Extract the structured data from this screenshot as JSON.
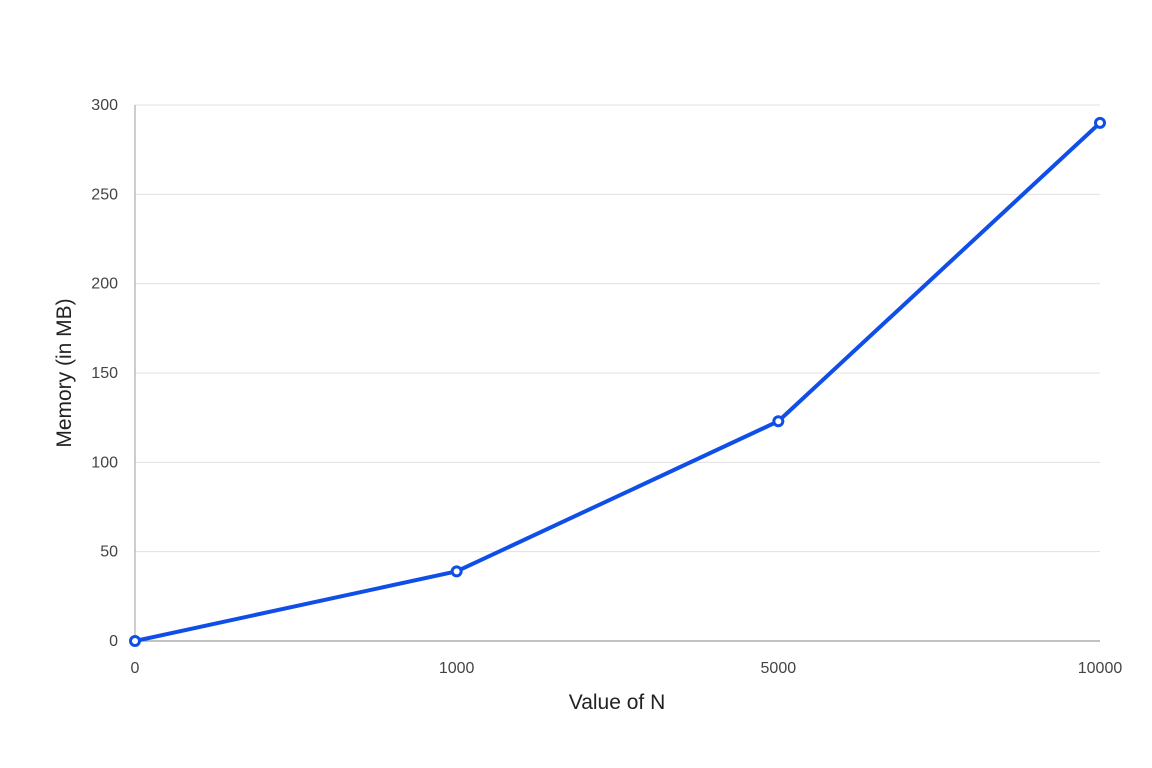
{
  "chart_data": {
    "type": "line",
    "title": "",
    "xlabel": "Value of N",
    "ylabel": "Memory (in MB)",
    "categories": [
      "0",
      "1000",
      "5000",
      "10000"
    ],
    "series": [
      {
        "values": [
          0,
          39,
          123,
          290
        ]
      }
    ],
    "ylim": [
      0,
      300
    ],
    "yticks": [
      "0",
      "50",
      "100",
      "150",
      "200",
      "250",
      "300"
    ],
    "grid": true,
    "legend": "none",
    "colors": {
      "line": "#0f4fe8",
      "grid": "#e0e0e0",
      "axis": "#9e9e9e",
      "marker_fill": "#ffffff"
    }
  }
}
